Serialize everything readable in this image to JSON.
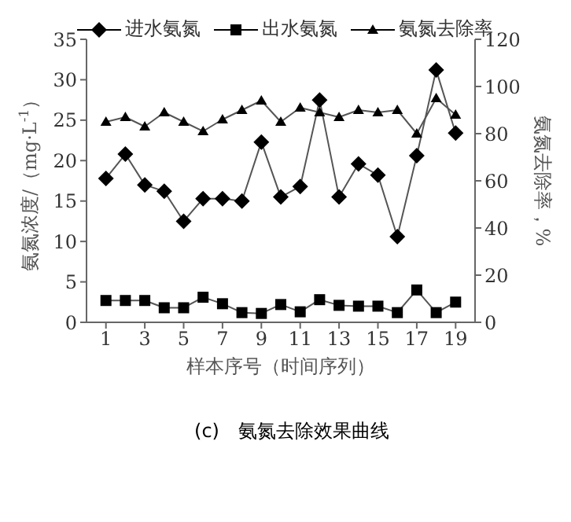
{
  "chart_data": {
    "type": "line",
    "title": "(c)　氨氮去除效果曲线",
    "xlabel": "样本序号（时间序列）",
    "ylabel": "氨氮浓度/（mg·L$^{-1}$）",
    "y2label": "氨氮去除率，%",
    "x": [
      1,
      2,
      3,
      4,
      5,
      6,
      7,
      8,
      9,
      10,
      11,
      12,
      13,
      14,
      15,
      16,
      17,
      18,
      19
    ],
    "series": [
      {
        "name": "进水氨氮",
        "color": "#000000",
        "marker": "diamond",
        "values": [
          17.8,
          20.8,
          17,
          16.2,
          12.5,
          15.3,
          15.3,
          15.0,
          22.3,
          15.5,
          16.8,
          27.5,
          15.5,
          19.6,
          18.2,
          10.6,
          20.6,
          31.2,
          23.4
        ]
      },
      {
        "name": "出水氨氮",
        "color": "#000000",
        "marker": "square",
        "values": [
          2.7,
          2.7,
          2.7,
          1.8,
          1.8,
          3.1,
          2.3,
          1.2,
          1.1,
          2.2,
          1.3,
          2.8,
          2.1,
          2.0,
          2.0,
          1.2,
          4.0,
          1.2,
          2.5
        ]
      },
      {
        "name": "氨氮去除率",
        "color": "#000000",
        "marker": "triangle",
        "axis": "y2",
        "values": [
          85,
          87,
          83,
          89,
          85,
          81,
          86,
          90,
          94,
          85,
          91,
          89,
          87,
          90,
          89,
          90,
          80,
          95,
          88
        ]
      }
    ],
    "xlim": [
      0,
      20
    ],
    "xticks": [
      1,
      3,
      5,
      7,
      9,
      11,
      13,
      15,
      17,
      19
    ],
    "ylim": [
      0,
      35
    ],
    "yticks": [
      0,
      5,
      10,
      15,
      20,
      25,
      30,
      35
    ],
    "y2lim": [
      0,
      120
    ],
    "y2ticks": [
      0,
      20,
      40,
      60,
      80,
      100,
      120
    ],
    "grid": false,
    "legend": "top",
    "line_style": "solid"
  }
}
